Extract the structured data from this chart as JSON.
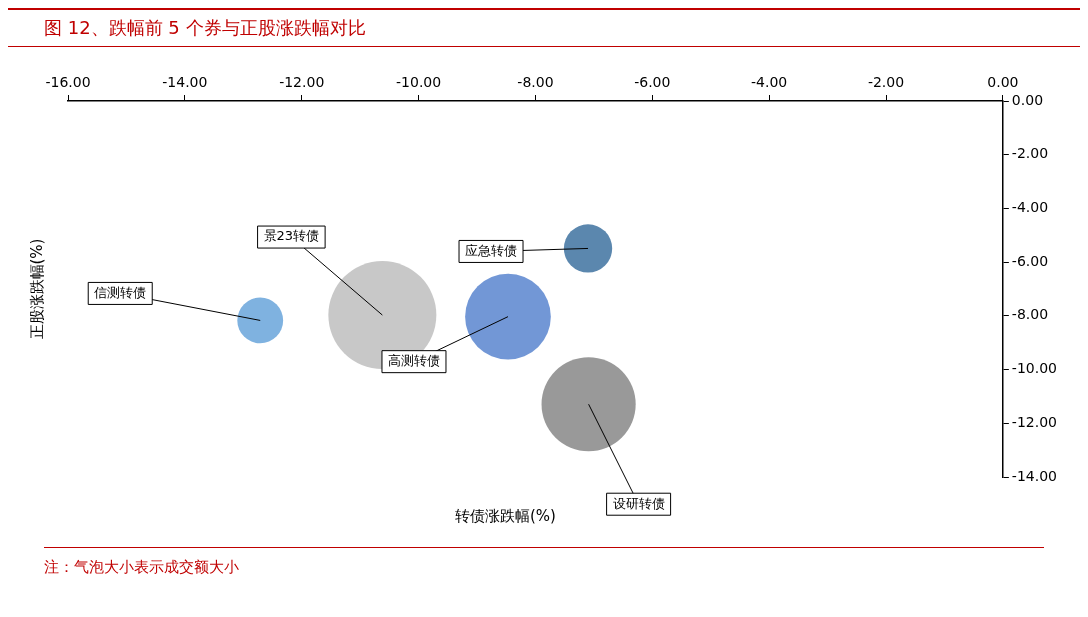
{
  "chart_data": {
    "type": "bubble",
    "title": "图 12、跌幅前 5 个券与正股涨跌幅对比",
    "xlabel": "转债涨跌幅(%)",
    "ylabel": "正股涨跌幅(%)",
    "series": [
      {
        "x": [
          -12.71,
          -10.62,
          -8.47,
          -7.1,
          -7.09
        ],
        "values": [
          -8.17,
          -7.97,
          -8.03,
          -5.49,
          -11.29
        ],
        "sizes": [
          0.18,
          1,
          0.63,
          0.2,
          0.76
        ],
        "colors": [
          "#7fb2e0",
          "#c8c8c8",
          "#7297d6",
          "#5b87ae",
          "#999999"
        ]
      }
    ],
    "xlim": [
      -16,
      0
    ],
    "xticks": [
      {
        "value": -16,
        "label": "-16.00"
      },
      {
        "value": -14,
        "label": "-14.00"
      },
      {
        "value": -12,
        "label": "-12.00"
      },
      {
        "value": -10,
        "label": "-10.00"
      },
      {
        "value": -8,
        "label": "-8.00"
      },
      {
        "value": -6,
        "label": "-6.00"
      },
      {
        "value": -4,
        "label": "-4.00"
      },
      {
        "value": -2,
        "label": "-2.00"
      },
      {
        "value": 0,
        "label": "0.00"
      }
    ],
    "ylim": [
      -14,
      0
    ],
    "yticks": [
      {
        "value": -14,
        "label": "-14.00"
      },
      {
        "value": -12,
        "label": "-12.00"
      },
      {
        "value": -10,
        "label": "-10.00"
      },
      {
        "value": -8,
        "label": "-8.00"
      },
      {
        "value": -6,
        "label": "-6.00"
      },
      {
        "value": -4,
        "label": "-4.00"
      },
      {
        "value": -2,
        "label": "-2.00"
      },
      {
        "value": 0,
        "label": "0.00"
      }
    ],
    "annotations": [
      {
        "text": "信测转债",
        "x": -12.71,
        "y": -8.17
      },
      {
        "text": "景23转债",
        "x": -10.62,
        "y": -7.97
      },
      {
        "text": "高测转债",
        "x": -8.47,
        "y": -8.03
      },
      {
        "text": "应急转债",
        "x": -7.1,
        "y": -5.49
      },
      {
        "text": "设研转债",
        "x": -7.09,
        "y": -11.29
      },
      "注：气泡大小表示成交额大小"
    ],
    "grid": false,
    "legend": false
  }
}
